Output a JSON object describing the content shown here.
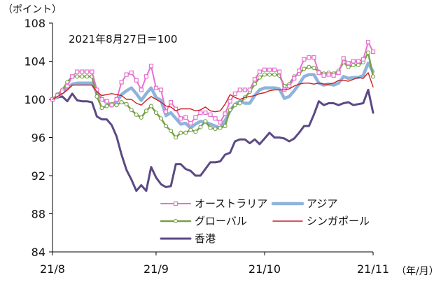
{
  "chart_data": {
    "type": "line",
    "y_unit_label": "（ポイント）",
    "x_unit_label": "（年/月）",
    "annotation": "2021年8月27日＝100",
    "ylim": [
      84,
      108
    ],
    "yticks": [
      84,
      88,
      92,
      96,
      100,
      104,
      108
    ],
    "xlim": [
      0,
      65
    ],
    "xticks": [
      {
        "index": 0,
        "label": "21/8"
      },
      {
        "index": 21,
        "label": "21/9"
      },
      {
        "index": 43,
        "label": "21/10"
      },
      {
        "index": 65,
        "label": "21/11"
      }
    ],
    "grid": false,
    "legend_position": "bottom-right",
    "series": [
      {
        "name": "オーストラリア",
        "color": "#e86fd0",
        "marker": "square",
        "values": [
          100,
          100.4,
          100.8,
          101.4,
          102.4,
          102.9,
          102.9,
          102.9,
          102.9,
          101.0,
          100.0,
          99.8,
          99.4,
          100.0,
          101.8,
          102.6,
          102.8,
          102.0,
          101.0,
          102.4,
          103.5,
          101.2,
          101.0,
          98.7,
          99.7,
          99.0,
          98.0,
          98.1,
          97.5,
          98.1,
          98.6,
          98.6,
          98.4,
          98.0,
          97.6,
          98.5,
          99.8,
          100.6,
          101.0,
          101.0,
          101.0,
          102.1,
          102.9,
          103.1,
          103.1,
          103.1,
          102.9,
          101.0,
          101.4,
          102.2,
          103.0,
          104.2,
          104.4,
          104.4,
          102.8,
          102.5,
          102.6,
          102.5,
          102.8,
          104.3,
          103.8,
          104.0,
          104.0,
          104.2,
          106.0,
          105.0
        ]
      },
      {
        "name": "アジア",
        "color": "#8eb4dc",
        "marker": "none",
        "values": [
          100,
          100.3,
          100.7,
          101.1,
          101.6,
          101.7,
          101.7,
          101.7,
          101.7,
          100.7,
          100.0,
          99.7,
          99.3,
          99.7,
          100.5,
          100.9,
          101.2,
          100.6,
          99.9,
          100.6,
          101.2,
          100.2,
          99.9,
          98.3,
          98.6,
          98.0,
          97.4,
          97.5,
          97.0,
          97.4,
          97.7,
          97.6,
          97.4,
          97.2,
          97.0,
          97.8,
          98.8,
          99.5,
          99.8,
          99.6,
          99.6,
          100.4,
          101.0,
          101.2,
          101.2,
          101.2,
          101.1,
          100.1,
          100.3,
          100.9,
          101.6,
          102.4,
          102.6,
          102.6,
          101.7,
          101.5,
          101.6,
          101.5,
          101.7,
          102.4,
          102.2,
          102.3,
          102.3,
          102.5,
          103.8,
          102.9
        ]
      },
      {
        "name": "グローバル",
        "color": "#76a045",
        "marker": "circle",
        "values": [
          100,
          100.5,
          101.0,
          101.8,
          102.4,
          102.4,
          102.4,
          102.4,
          102.4,
          100.3,
          99.1,
          99.3,
          99.5,
          99.4,
          99.7,
          99.5,
          98.9,
          98.4,
          98.1,
          98.8,
          99.3,
          98.6,
          98.0,
          97.2,
          96.7,
          96.0,
          96.5,
          96.5,
          96.8,
          96.6,
          97.1,
          97.7,
          97.0,
          96.9,
          97.0,
          97.2,
          98.9,
          99.4,
          99.6,
          100.2,
          100.8,
          101.6,
          102.3,
          102.6,
          102.6,
          102.6,
          102.5,
          101.4,
          101.6,
          102.4,
          102.7,
          103.2,
          103.4,
          103.3,
          102.9,
          102.7,
          102.8,
          102.7,
          103.0,
          103.9,
          103.4,
          103.6,
          103.6,
          103.9,
          104.9,
          102.4
        ]
      },
      {
        "name": "シンガポール",
        "color": "#cc1f1f",
        "marker": "none",
        "values": [
          100,
          100.3,
          100.6,
          101.0,
          101.5,
          101.5,
          101.5,
          101.5,
          101.5,
          100.8,
          100.4,
          100.5,
          100.6,
          100.5,
          100.4,
          100.0,
          100.0,
          99.6,
          99.4,
          99.9,
          100.3,
          100.0,
          99.7,
          99.3,
          99.2,
          98.8,
          99.0,
          99.0,
          99.0,
          98.8,
          98.9,
          99.2,
          98.8,
          98.7,
          98.8,
          99.5,
          100.5,
          100.2,
          100.0,
          100.2,
          100.3,
          100.4,
          100.6,
          100.7,
          100.9,
          101.0,
          101.0,
          101.0,
          101.1,
          101.4,
          101.6,
          101.7,
          101.7,
          101.6,
          101.7,
          101.6,
          101.6,
          101.7,
          102.0,
          102.0,
          101.9,
          102.1,
          102.3,
          102.2,
          102.8,
          101.3
        ]
      },
      {
        "name": "香港",
        "color": "#5b4a85",
        "marker": "none",
        "values": [
          100,
          100.2,
          100.3,
          99.8,
          100.6,
          99.9,
          99.8,
          99.8,
          99.7,
          98.2,
          97.9,
          97.9,
          97.3,
          96.1,
          94.2,
          92.6,
          91.6,
          90.4,
          91.0,
          90.4,
          92.9,
          91.8,
          91.1,
          90.8,
          90.9,
          93.2,
          93.2,
          92.7,
          92.5,
          92.0,
          92.0,
          92.7,
          93.4,
          93.4,
          93.5,
          94.2,
          94.4,
          95.6,
          95.8,
          95.8,
          95.4,
          95.8,
          95.3,
          95.9,
          96.5,
          96.0,
          96.0,
          95.9,
          95.6,
          95.9,
          96.5,
          97.2,
          97.2,
          98.4,
          99.8,
          99.4,
          99.6,
          99.6,
          99.4,
          99.6,
          99.7,
          99.4,
          99.5,
          99.6,
          101.0,
          98.6
        ]
      }
    ]
  }
}
